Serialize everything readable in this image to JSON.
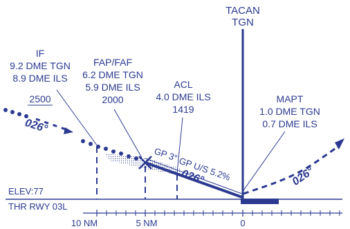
{
  "colors": {
    "ink": "#2b3990",
    "background": "#ffffff"
  },
  "station": {
    "name": "TACAN",
    "ident": "TGN"
  },
  "fixes": {
    "if": {
      "name": "IF",
      "dme_tgn": "9.2 DME TGN",
      "dme_ils": "8.9 DME ILS",
      "altitude": "2500"
    },
    "faf": {
      "name": "FAP/FAF",
      "dme_tgn": "6.2 DME TGN",
      "dme_ils": "5.9 DME ILS",
      "altitude": "2000"
    },
    "acl": {
      "name": "ACL",
      "dme_ils": "4.0 DME ILS",
      "altitude": "1419"
    },
    "mapt": {
      "name": "MAPT",
      "dme_tgn": "1.0 DME TGN",
      "dme_ils": "0.7 DME ILS"
    }
  },
  "tracks": {
    "inbound": "026°",
    "final": "026°",
    "missed": "026°"
  },
  "glidepath": {
    "gp": "GP 3°",
    "gp_us": "GP U/S 5.2%"
  },
  "elevation": "ELEV:77",
  "threshold": "THR RWY 03L",
  "scale": {
    "ticks": [
      "10 NM",
      "5 NM",
      "0"
    ]
  }
}
